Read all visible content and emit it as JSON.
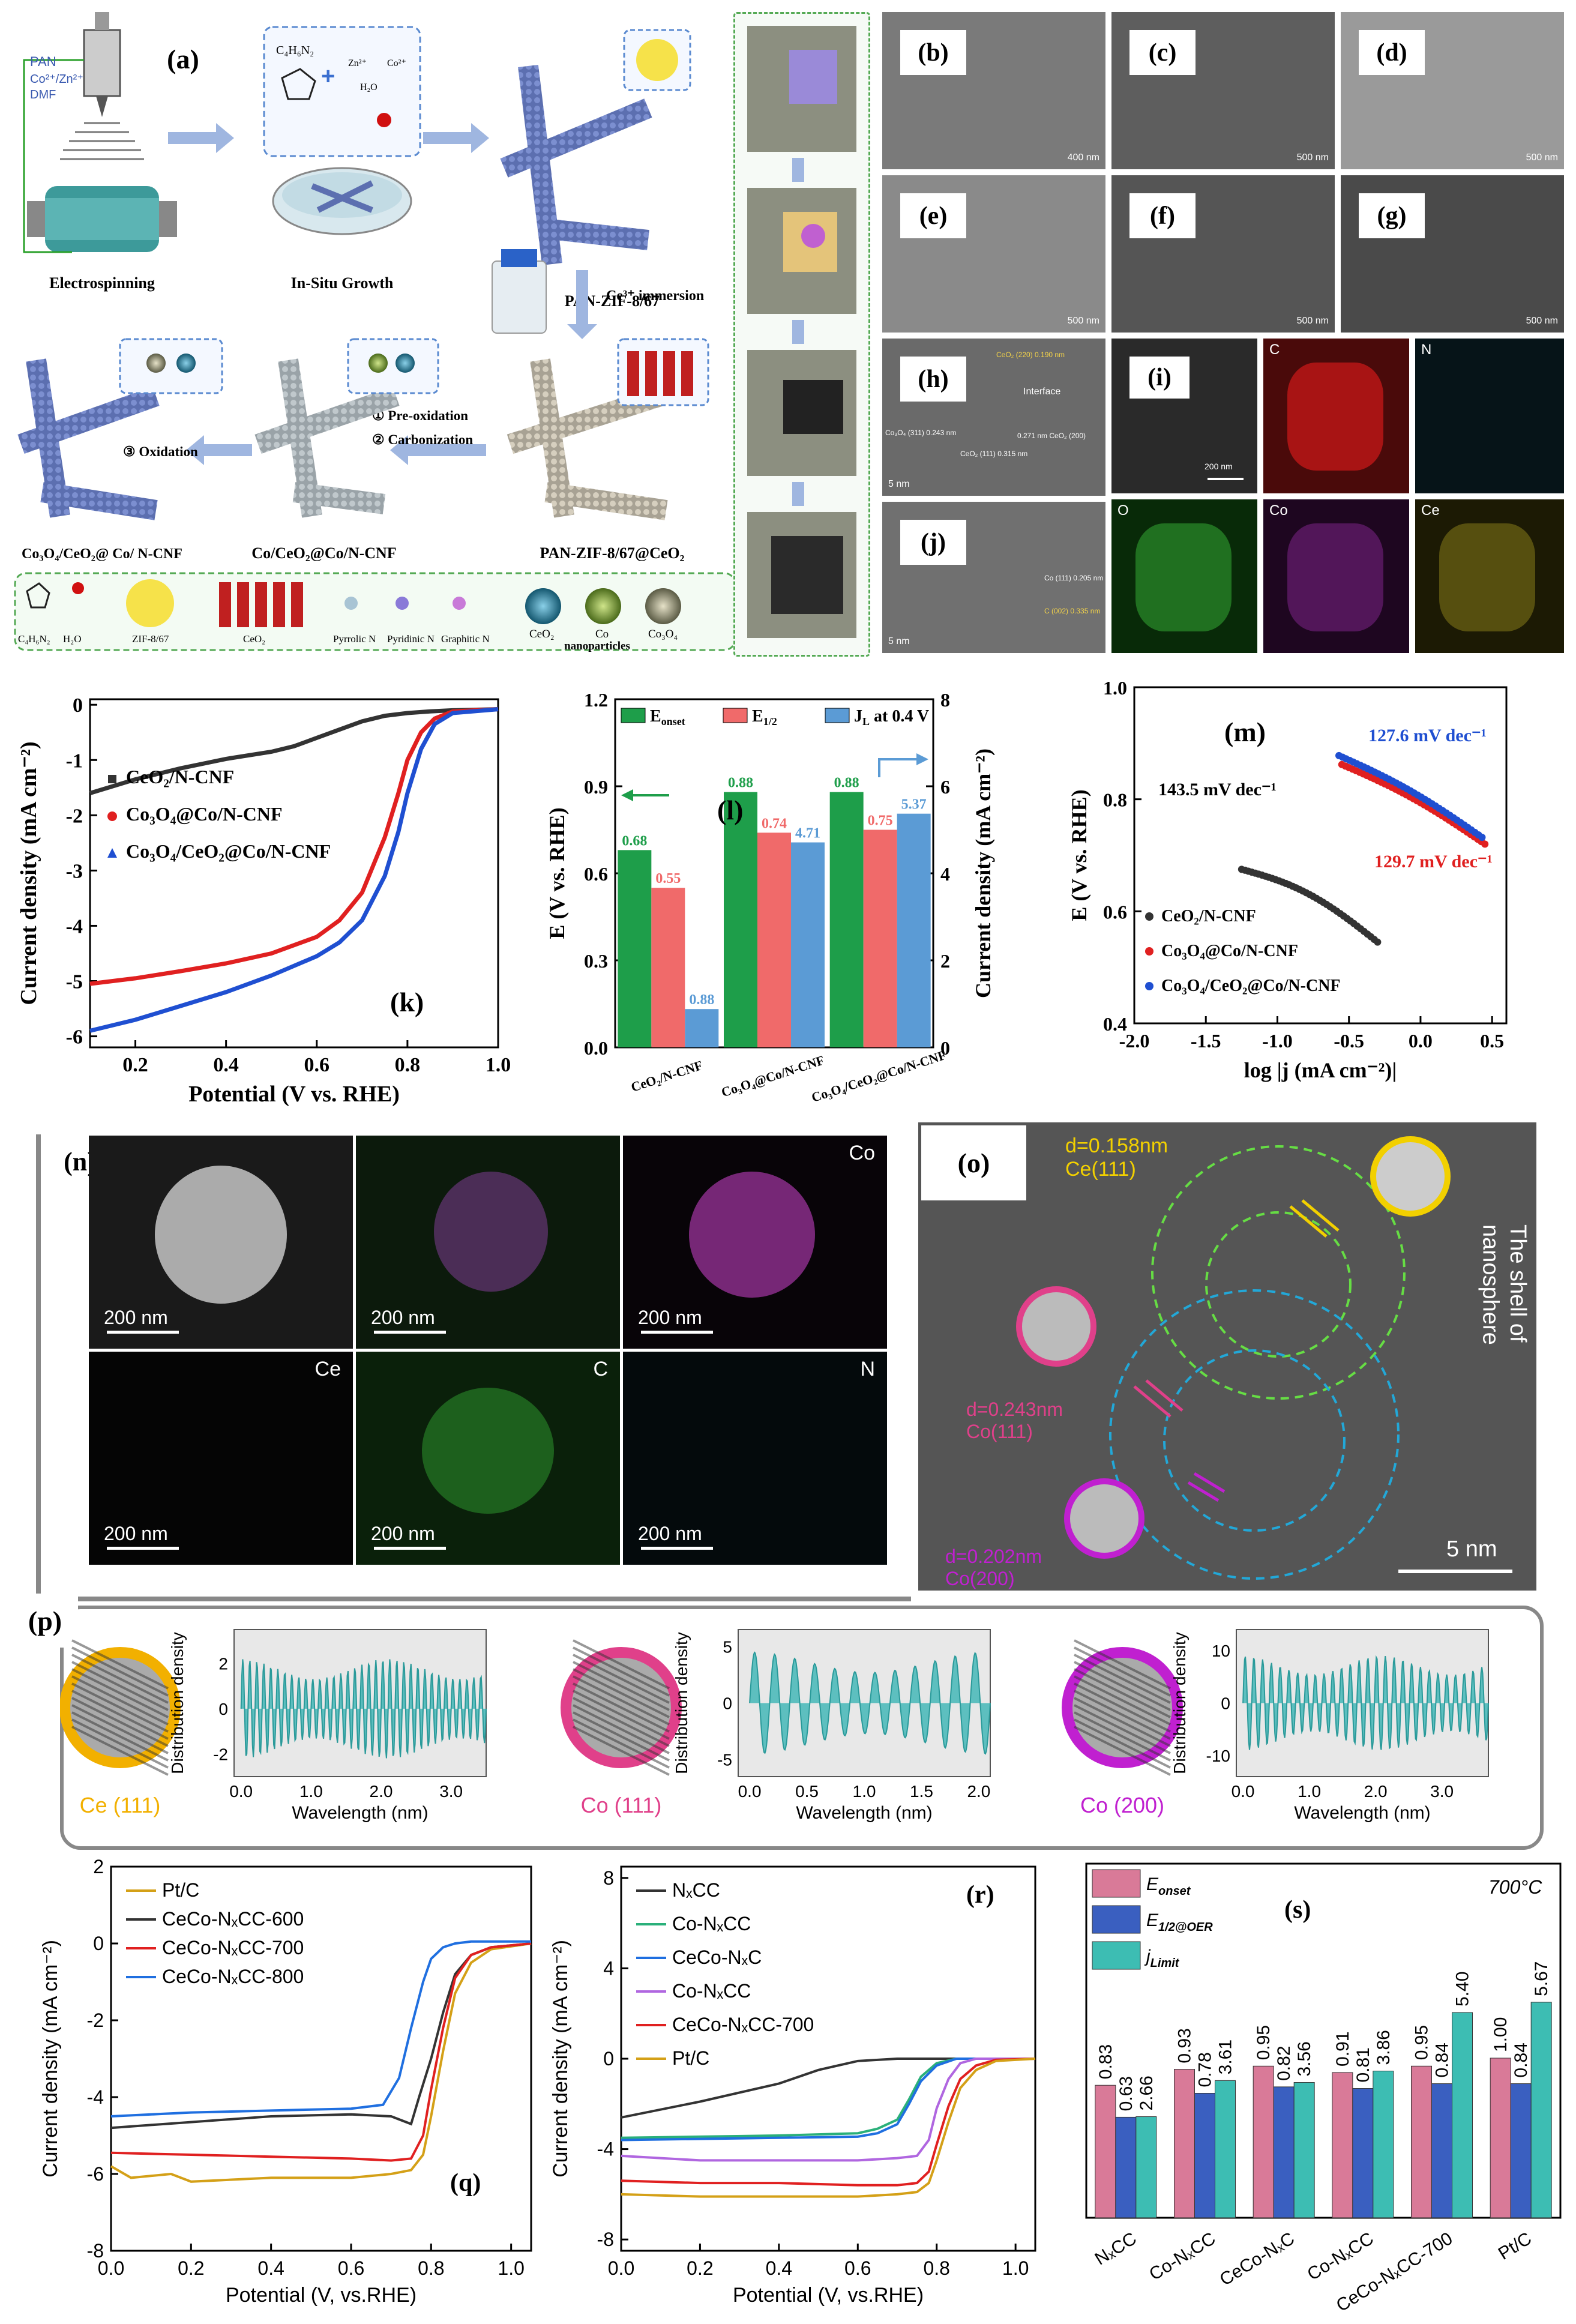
{
  "panels": {
    "a": "(a)",
    "b": "(b)",
    "c": "(c)",
    "d": "(d)",
    "e": "(e)",
    "f": "(f)",
    "g": "(g)",
    "h": "(h)",
    "i": "(i)",
    "j": "(j)",
    "k": "(k)",
    "l": "(l)",
    "m": "(m)",
    "n": "(n)",
    "o": "(o)",
    "p": "(p)",
    "q": "(q)",
    "r": "(r)",
    "s": "(s)"
  },
  "schematic": {
    "syringe_labels": [
      "PAN",
      "Co²⁺/Zn²⁺",
      "DMF"
    ],
    "electrospinning": "Electrospinning",
    "insitu": "In-Situ Growth",
    "pan_zif": "PAN-ZIF-8/67",
    "ce_immersion": "Ce³⁺ immersion",
    "pan_zif_ceo2": "PAN-ZIF-8/67@CeO₂",
    "step1": "① Pre-oxidation",
    "step2": "② Carbonization",
    "step3": "③ Oxidation",
    "co_ceo2": "Co/CeO₂@Co/N-CNF",
    "co3o4_ceo2": "Co₃O₄/CeO₂@ Co/ N-CNF",
    "ligand": "C₄H₆N₂",
    "reagents": [
      "Zn²⁺",
      "Co²⁺",
      "H₂O"
    ],
    "legend": [
      "C₄H₆N₂",
      "H₂O",
      "ZIF-8/67",
      "CeO₂",
      "Pyrrolic N",
      "Pyridinic N",
      "Graphitic N",
      "CeO₂",
      "Co",
      "Co₃O₄"
    ],
    "nanoparticles": "nanoparticles"
  },
  "micrographs": {
    "b_scale": "400 nm",
    "c_scale": "500 nm",
    "d_scale": "500 nm",
    "e_scale": "500 nm",
    "f_scale": "500 nm",
    "g_scale": "500 nm",
    "h_labels": [
      "CeO₂ (220) 0.190 nm",
      "Interface",
      "Co₃O₄ (311) 0.243 nm",
      "CeO₂ (111) 0.315 nm",
      "0.271 nm CeO₂ (200)"
    ],
    "h_scale": "5 nm",
    "i_scale": "200 nm",
    "i_elements": [
      "C",
      "N",
      "O",
      "Co",
      "Ce"
    ],
    "j_labels": [
      "Co (111) 0.205 nm",
      "C (002) 0.335 nm"
    ],
    "j_scale": "5 nm"
  },
  "chart_k": {
    "type": "line",
    "xlabel": "Potential (V vs. RHE)",
    "ylabel": "Current density (mA cm⁻²)",
    "xlim": [
      0.1,
      1.0
    ],
    "ylim": [
      -6.2,
      0.1
    ],
    "xticks": [
      "0.2",
      "0.4",
      "0.6",
      "0.8",
      "1.0"
    ],
    "yticks": [
      "-6",
      "-5",
      "-4",
      "-3",
      "-2",
      "-1",
      "0"
    ],
    "series": [
      {
        "name": "CeO₂/N-CNF",
        "color": "#333333",
        "x": [
          0.1,
          0.2,
          0.3,
          0.4,
          0.5,
          0.55,
          0.6,
          0.65,
          0.7,
          0.75,
          0.8,
          0.85,
          0.9,
          1.0
        ],
        "y": [
          -1.6,
          -1.35,
          -1.15,
          -0.98,
          -0.85,
          -0.75,
          -0.6,
          -0.45,
          -0.3,
          -0.2,
          -0.15,
          -0.12,
          -0.1,
          -0.08
        ]
      },
      {
        "name": "Co₃O₄@Co/N-CNF",
        "color": "#e02020",
        "x": [
          0.1,
          0.2,
          0.3,
          0.4,
          0.5,
          0.6,
          0.65,
          0.7,
          0.72,
          0.75,
          0.78,
          0.8,
          0.83,
          0.86,
          0.9,
          1.0
        ],
        "y": [
          -5.05,
          -4.95,
          -4.82,
          -4.68,
          -4.5,
          -4.2,
          -3.9,
          -3.4,
          -3.0,
          -2.4,
          -1.6,
          -1.0,
          -0.5,
          -0.25,
          -0.12,
          -0.08
        ]
      },
      {
        "name": "Co₃O₄/CeO₂@Co/N-CNF",
        "color": "#1f4fd1",
        "x": [
          0.1,
          0.2,
          0.3,
          0.4,
          0.5,
          0.6,
          0.65,
          0.7,
          0.75,
          0.78,
          0.8,
          0.83,
          0.86,
          0.9,
          1.0
        ],
        "y": [
          -5.9,
          -5.7,
          -5.45,
          -5.2,
          -4.9,
          -4.55,
          -4.3,
          -3.9,
          -3.1,
          -2.3,
          -1.6,
          -0.8,
          -0.35,
          -0.15,
          -0.08
        ]
      }
    ]
  },
  "chart_l": {
    "type": "bar",
    "categories": [
      "CeO₂/N-CNF",
      "Co₃O₄@Co/N-CNF",
      "Co₃O₄/CeO₂@Co/N-CNF"
    ],
    "ylabel_left": "E (V vs. RHE)",
    "ylabel_right": "Current density (mA cm⁻²)",
    "ylim_left": [
      0,
      1.2
    ],
    "ylim_right": [
      0,
      8
    ],
    "yticks_left": [
      "0.0",
      "0.3",
      "0.6",
      "0.9",
      "1.2"
    ],
    "yticks_right": [
      "0",
      "2",
      "4",
      "6",
      "8"
    ],
    "series": [
      {
        "name": "E_onset",
        "color": "#1e9e4a",
        "values": [
          0.68,
          0.88,
          0.88
        ],
        "labels": [
          "0.68",
          "0.88",
          "0.88"
        ]
      },
      {
        "name": "E_1/2",
        "color": "#f06a6a",
        "values": [
          0.55,
          0.74,
          0.75
        ],
        "labels": [
          "0.55",
          "0.74",
          "0.75"
        ]
      },
      {
        "name": "J_L at 0.4 V",
        "color": "#5b9bd5",
        "values_right": [
          0.88,
          4.71,
          5.37
        ],
        "labels": [
          "0.88",
          "4.71",
          "5.37"
        ]
      }
    ],
    "legend": [
      "E",
      "onset",
      "E",
      "1/2",
      "J",
      "L",
      " at 0.4 V"
    ]
  },
  "chart_m": {
    "type": "scatter",
    "xlabel": "log |j (mA cm⁻²)|",
    "ylabel": "E (V vs. RHE)",
    "xlim": [
      -2.0,
      0.6
    ],
    "ylim": [
      0.4,
      1.0
    ],
    "xticks": [
      "-2.0",
      "-1.5",
      "-1.0",
      "-0.5",
      "0.0",
      "0.5"
    ],
    "yticks": [
      "0.4",
      "0.6",
      "0.8",
      "1.0"
    ],
    "annotations": [
      "143.5 mV dec⁻¹",
      "127.6 mV dec⁻¹",
      "129.7 mV dec⁻¹"
    ],
    "series": [
      {
        "name": "CeO₂/N-CNF",
        "color": "#333333",
        "x0": -1.25,
        "x1": -0.3,
        "y0": 0.675,
        "y1": 0.545
      },
      {
        "name": "Co₃O₄@Co/N-CNF",
        "color": "#e02020",
        "x0": -0.55,
        "x1": 0.45,
        "y0": 0.862,
        "y1": 0.72
      },
      {
        "name": "Co₃O₄/CeO₂@Co/N-CNF",
        "color": "#1f4fd1",
        "x0": -0.57,
        "x1": 0.43,
        "y0": 0.878,
        "y1": 0.732
      }
    ]
  },
  "panel_n": {
    "scale": "200 nm",
    "elements": [
      "Co",
      "Ce",
      "C",
      "N"
    ]
  },
  "panel_o": {
    "ce_label": [
      "d=0.158nm",
      "Ce(111)"
    ],
    "co111_label": [
      "d=0.243nm",
      "Co(111)"
    ],
    "co200_label": [
      "d=0.202nm",
      "Co(200)"
    ],
    "shell": [
      "The shell of",
      "nanosphere"
    ],
    "scale": "5 nm"
  },
  "chart_p": {
    "ylabel": "Distribution density",
    "xlabel": "Wavelength  (nm)",
    "ce": {
      "name": "Ce (111)",
      "xticks": [
        "0.0",
        "1.0",
        "2.0",
        "3.0"
      ],
      "yticks": [
        "-2",
        "0",
        "2"
      ]
    },
    "co111": {
      "name": "Co (111)",
      "xticks": [
        "0.0",
        "0.5",
        "1.0",
        "1.5",
        "2.0"
      ],
      "yticks": [
        "-5",
        "0",
        "5"
      ]
    },
    "co200": {
      "name": "Co (200)",
      "xticks": [
        "0.0",
        "1.0",
        "2.0",
        "3.0"
      ],
      "yticks": [
        "-10",
        "0",
        "10"
      ]
    }
  },
  "chart_q": {
    "type": "line",
    "xlabel": "Potential (V, vs.RHE)",
    "ylabel": "Current density (mA cm⁻²)",
    "xlim": [
      0.0,
      1.05
    ],
    "ylim": [
      -8,
      2
    ],
    "xticks": [
      "0.0",
      "0.2",
      "0.4",
      "0.6",
      "0.8",
      "1.0"
    ],
    "yticks": [
      "-8",
      "-6",
      "-4",
      "-2",
      "0",
      "2"
    ],
    "series": [
      {
        "name": "Pt/C",
        "color": "#d4a017",
        "x": [
          0.0,
          0.05,
          0.15,
          0.2,
          0.4,
          0.6,
          0.7,
          0.75,
          0.78,
          0.8,
          0.83,
          0.86,
          0.9,
          0.95,
          1.05
        ],
        "y": [
          -5.8,
          -6.1,
          -6.0,
          -6.2,
          -6.1,
          -6.1,
          -6.0,
          -5.9,
          -5.5,
          -4.5,
          -2.8,
          -1.3,
          -0.5,
          -0.15,
          0.0
        ]
      },
      {
        "name": "CeCo-NₓCC-600",
        "color": "#333333",
        "x": [
          0.0,
          0.2,
          0.4,
          0.6,
          0.7,
          0.75,
          0.77,
          0.8,
          0.83,
          0.86,
          0.9,
          0.95,
          1.05
        ],
        "y": [
          -4.8,
          -4.65,
          -4.5,
          -4.45,
          -4.5,
          -4.7,
          -4.0,
          -3.0,
          -1.8,
          -0.8,
          -0.3,
          -0.1,
          0.0
        ]
      },
      {
        "name": "CeCo-NₓCC-700",
        "color": "#e02020",
        "x": [
          0.0,
          0.2,
          0.4,
          0.6,
          0.7,
          0.75,
          0.78,
          0.8,
          0.83,
          0.86,
          0.9,
          0.95,
          1.05
        ],
        "y": [
          -5.45,
          -5.5,
          -5.55,
          -5.6,
          -5.65,
          -5.6,
          -5.0,
          -3.8,
          -2.2,
          -0.9,
          -0.3,
          -0.1,
          0.0
        ]
      },
      {
        "name": "CeCo-NₓCC-800",
        "color": "#1f6fe0",
        "x": [
          0.0,
          0.2,
          0.4,
          0.6,
          0.68,
          0.72,
          0.75,
          0.78,
          0.8,
          0.83,
          0.86,
          0.9,
          1.05
        ],
        "y": [
          -4.5,
          -4.4,
          -4.35,
          -4.3,
          -4.2,
          -3.5,
          -2.2,
          -1.0,
          -0.4,
          -0.1,
          0.0,
          0.05,
          0.05
        ]
      }
    ]
  },
  "chart_r": {
    "type": "line",
    "xlabel": "Potential (V, vs.RHE)",
    "ylabel": "Current density (mA cm⁻²)",
    "xlim": [
      0.0,
      1.05
    ],
    "ylim": [
      -8.5,
      8.5
    ],
    "xticks": [
      "0.0",
      "0.2",
      "0.4",
      "0.6",
      "0.8",
      "1.0"
    ],
    "yticks": [
      "-8",
      "-4",
      "0",
      "4",
      "8"
    ],
    "series": [
      {
        "name": "NₓCC",
        "color": "#333333",
        "x": [
          0.0,
          0.2,
          0.4,
          0.5,
          0.6,
          0.7,
          0.8,
          0.9,
          1.0,
          1.05
        ],
        "y": [
          -2.6,
          -1.9,
          -1.1,
          -0.5,
          -0.1,
          0.0,
          0.0,
          0.0,
          0.0,
          0.0
        ]
      },
      {
        "name": "Co-NₓCC",
        "color": "#2ab07a",
        "x": [
          0.0,
          0.2,
          0.4,
          0.6,
          0.65,
          0.7,
          0.73,
          0.76,
          0.8,
          0.85,
          0.9,
          1.05
        ],
        "y": [
          -3.5,
          -3.45,
          -3.4,
          -3.3,
          -3.1,
          -2.7,
          -1.8,
          -0.8,
          -0.2,
          0.0,
          0.0,
          0.0
        ]
      },
      {
        "name": "CeCo-NₓC",
        "color": "#1f6fe0",
        "x": [
          0.0,
          0.2,
          0.4,
          0.6,
          0.65,
          0.7,
          0.73,
          0.76,
          0.8,
          0.85,
          0.9,
          1.05
        ],
        "y": [
          -3.6,
          -3.55,
          -3.5,
          -3.45,
          -3.3,
          -2.9,
          -2.0,
          -1.0,
          -0.3,
          0.0,
          0.0,
          0.0
        ]
      },
      {
        "name": "Co-NₓCC",
        "color": "#b066e0",
        "x": [
          0.0,
          0.2,
          0.4,
          0.6,
          0.7,
          0.75,
          0.78,
          0.8,
          0.83,
          0.86,
          0.9,
          1.05
        ],
        "y": [
          -4.3,
          -4.5,
          -4.5,
          -4.5,
          -4.4,
          -4.3,
          -3.6,
          -2.2,
          -0.9,
          -0.2,
          0.0,
          0.0
        ]
      },
      {
        "name": "CeCo-NₓCC-700",
        "color": "#e02020",
        "x": [
          0.0,
          0.2,
          0.4,
          0.6,
          0.7,
          0.75,
          0.78,
          0.8,
          0.83,
          0.86,
          0.9,
          0.95,
          1.05
        ],
        "y": [
          -5.4,
          -5.5,
          -5.5,
          -5.6,
          -5.6,
          -5.5,
          -5.0,
          -3.8,
          -2.1,
          -0.9,
          -0.3,
          -0.05,
          0.0
        ]
      },
      {
        "name": "Pt/C",
        "color": "#d4a017",
        "x": [
          0.0,
          0.2,
          0.4,
          0.6,
          0.7,
          0.75,
          0.78,
          0.8,
          0.83,
          0.86,
          0.9,
          0.95,
          1.05
        ],
        "y": [
          -6.0,
          -6.1,
          -6.1,
          -6.1,
          -6.0,
          -5.9,
          -5.5,
          -4.5,
          -2.8,
          -1.3,
          -0.5,
          -0.1,
          0.0
        ]
      }
    ]
  },
  "chart_s": {
    "type": "bar",
    "title": "700°C",
    "categories": [
      "NₓCC",
      "Co-NₓCC",
      "CeCo-NₓC",
      "Co-NₓCC",
      "CeCo-NₓCC-700",
      "Pt/C"
    ],
    "series": [
      {
        "name": "E_onset",
        "color": "#d97a98",
        "values": [
          0.83,
          0.93,
          0.95,
          0.91,
          0.95,
          1.0
        ],
        "labels": [
          "0.83",
          "0.93",
          "0.95",
          "0.91",
          "0.95",
          "1.00"
        ]
      },
      {
        "name": "E_1/2@OER",
        "color": "#3a5fc0",
        "values": [
          0.63,
          0.78,
          0.82,
          0.81,
          0.84,
          0.84
        ],
        "labels": [
          "0.63",
          "0.78",
          "0.82",
          "0.81",
          "0.84",
          "0.84"
        ]
      },
      {
        "name": "j_Limit",
        "color": "#3dbdb3",
        "values": [
          2.66,
          3.61,
          3.56,
          3.86,
          5.4,
          5.67
        ],
        "labels": [
          "2.66",
          "3.61",
          "3.56",
          "3.86",
          "5.40",
          "5.67"
        ]
      }
    ],
    "legend": [
      "E",
      "onset",
      "E",
      "1/2@OER",
      "j",
      "Limit"
    ]
  }
}
